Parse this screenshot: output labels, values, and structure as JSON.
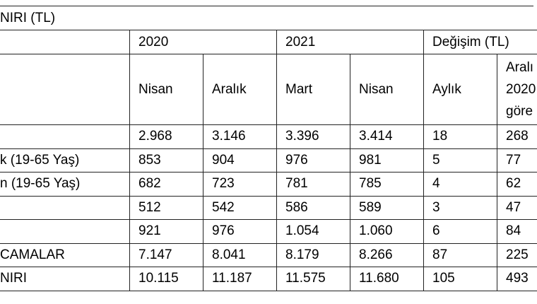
{
  "title": "NIRI (TL)",
  "header": {
    "years": [
      "2020",
      "2021",
      "Değişim (TL)"
    ],
    "sub": [
      "Nisan",
      "Aralık",
      "Mart",
      "Nisan",
      "Aylık"
    ],
    "last_sub": [
      "Aralı",
      "2020",
      "göre"
    ]
  },
  "rows": [
    {
      "label": null,
      "cells": [
        "2.968",
        "3.146",
        "3.396",
        "3.414",
        "18",
        "268"
      ]
    },
    {
      "label": "k (19-65 Yaş)",
      "cells": [
        "853",
        "904",
        "976",
        "981",
        "5",
        "77"
      ]
    },
    {
      "label": "n (19-65 Yaş)",
      "cells": [
        "682",
        "723",
        "781",
        "785",
        "4",
        "62"
      ]
    },
    {
      "label": null,
      "cells": [
        "512",
        "542",
        "586",
        "589",
        "3",
        "47"
      ]
    },
    {
      "label": null,
      "cells": [
        "921",
        "976",
        "1.054",
        "1.060",
        "6",
        "84"
      ]
    },
    {
      "label": "CAMALAR",
      "cells": [
        "7.147",
        "8.041",
        "8.179",
        "8.266",
        "87",
        "225"
      ]
    },
    {
      "label": "NIRI",
      "cells": [
        "10.115",
        "11.187",
        "11.575",
        "11.680",
        "105",
        "493"
      ]
    }
  ]
}
